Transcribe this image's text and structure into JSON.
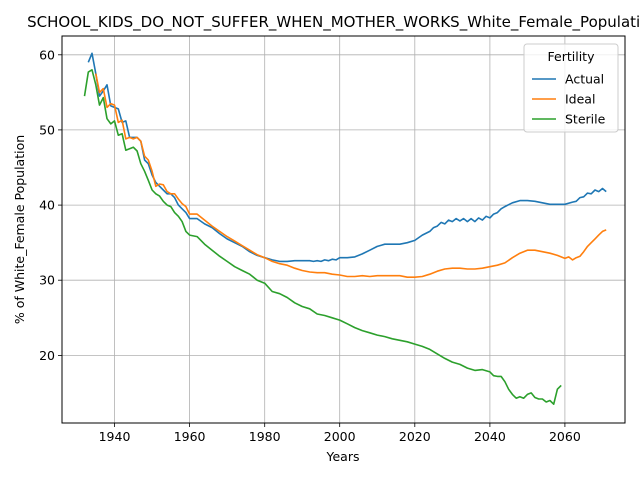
{
  "chart_data": {
    "type": "line",
    "title": "SCHOOL_KIDS_DO_NOT_SUFFER_WHEN_MOTHER_WORKS_White_Female_Population",
    "xlabel": "Years",
    "ylabel": "% of White_Female Population",
    "xlim": [
      1926,
      2076
    ],
    "ylim": [
      11,
      62.5
    ],
    "xticks": [
      1940,
      1960,
      1980,
      2000,
      2020,
      2040,
      2060
    ],
    "yticks": [
      20,
      30,
      40,
      50,
      60
    ],
    "grid": true,
    "legend": {
      "title": "Fertility",
      "position": "top-right",
      "entries": [
        "Actual",
        "Ideal",
        "Sterile"
      ]
    },
    "series": [
      {
        "name": "Actual",
        "color": "#1f77b4",
        "points": [
          [
            1933,
            59
          ],
          [
            1934,
            60.2
          ],
          [
            1935,
            57.5
          ],
          [
            1936,
            54.5
          ],
          [
            1937,
            55.2
          ],
          [
            1938,
            56
          ],
          [
            1939,
            53.2
          ],
          [
            1940,
            53
          ],
          [
            1941,
            52.8
          ],
          [
            1942,
            51
          ],
          [
            1943,
            51.2
          ],
          [
            1944,
            49
          ],
          [
            1945,
            49
          ],
          [
            1946,
            49
          ],
          [
            1947,
            48.5
          ],
          [
            1948,
            46
          ],
          [
            1949,
            45.5
          ],
          [
            1950,
            44
          ],
          [
            1951,
            43
          ],
          [
            1952,
            42.5
          ],
          [
            1953,
            42
          ],
          [
            1954,
            41.5
          ],
          [
            1955,
            41.5
          ],
          [
            1956,
            41
          ],
          [
            1957,
            40
          ],
          [
            1958,
            39.5
          ],
          [
            1959,
            39
          ],
          [
            1960,
            38.2
          ],
          [
            1962,
            38.2
          ],
          [
            1964,
            37.5
          ],
          [
            1966,
            37
          ],
          [
            1968,
            36.2
          ],
          [
            1970,
            35.5
          ],
          [
            1972,
            35
          ],
          [
            1974,
            34.5
          ],
          [
            1976,
            33.8
          ],
          [
            1978,
            33.3
          ],
          [
            1980,
            33
          ],
          [
            1982,
            32.7
          ],
          [
            1984,
            32.5
          ],
          [
            1986,
            32.5
          ],
          [
            1988,
            32.6
          ],
          [
            1990,
            32.6
          ],
          [
            1992,
            32.6
          ],
          [
            1993,
            32.5
          ],
          [
            1994,
            32.6
          ],
          [
            1995,
            32.5
          ],
          [
            1996,
            32.7
          ],
          [
            1997,
            32.6
          ],
          [
            1998,
            32.8
          ],
          [
            1999,
            32.7
          ],
          [
            2000,
            33
          ],
          [
            2002,
            33
          ],
          [
            2004,
            33.1
          ],
          [
            2006,
            33.5
          ],
          [
            2008,
            34
          ],
          [
            2010,
            34.5
          ],
          [
            2012,
            34.8
          ],
          [
            2014,
            34.8
          ],
          [
            2016,
            34.8
          ],
          [
            2018,
            35
          ],
          [
            2020,
            35.3
          ],
          [
            2022,
            36
          ],
          [
            2024,
            36.5
          ],
          [
            2025,
            37
          ],
          [
            2026,
            37.2
          ],
          [
            2027,
            37.7
          ],
          [
            2028,
            37.5
          ],
          [
            2029,
            38
          ],
          [
            2030,
            37.8
          ],
          [
            2031,
            38.2
          ],
          [
            2032,
            37.9
          ],
          [
            2033,
            38.2
          ],
          [
            2034,
            37.8
          ],
          [
            2035,
            38.2
          ],
          [
            2036,
            37.8
          ],
          [
            2037,
            38.3
          ],
          [
            2038,
            38
          ],
          [
            2039,
            38.5
          ],
          [
            2040,
            38.3
          ],
          [
            2041,
            38.8
          ],
          [
            2042,
            39
          ],
          [
            2043,
            39.5
          ],
          [
            2044,
            39.8
          ],
          [
            2046,
            40.3
          ],
          [
            2048,
            40.6
          ],
          [
            2050,
            40.6
          ],
          [
            2052,
            40.5
          ],
          [
            2054,
            40.3
          ],
          [
            2056,
            40.1
          ],
          [
            2058,
            40.1
          ],
          [
            2060,
            40.1
          ],
          [
            2062,
            40.4
          ],
          [
            2063,
            40.5
          ],
          [
            2064,
            41
          ],
          [
            2065,
            41.1
          ],
          [
            2066,
            41.6
          ],
          [
            2067,
            41.5
          ],
          [
            2068,
            42
          ],
          [
            2069,
            41.8
          ],
          [
            2070,
            42.2
          ],
          [
            2071,
            41.8
          ]
        ]
      },
      {
        "name": "Ideal",
        "color": "#ff7f0e",
        "points": [
          [
            1935,
            57.5
          ],
          [
            1936,
            55
          ],
          [
            1937,
            55.5
          ],
          [
            1938,
            53
          ],
          [
            1939,
            53.5
          ],
          [
            1940,
            53.3
          ],
          [
            1941,
            51
          ],
          [
            1942,
            51.3
          ],
          [
            1943,
            48.8
          ],
          [
            1944,
            49
          ],
          [
            1945,
            48.8
          ],
          [
            1946,
            49
          ],
          [
            1947,
            48.5
          ],
          [
            1948,
            46.5
          ],
          [
            1949,
            46
          ],
          [
            1950,
            44.5
          ],
          [
            1951,
            42.5
          ],
          [
            1952,
            42.8
          ],
          [
            1953,
            42.7
          ],
          [
            1954,
            41.8
          ],
          [
            1955,
            41.5
          ],
          [
            1956,
            41.5
          ],
          [
            1957,
            40.8
          ],
          [
            1958,
            40.2
          ],
          [
            1959,
            39.8
          ],
          [
            1960,
            38.8
          ],
          [
            1962,
            38.8
          ],
          [
            1964,
            38
          ],
          [
            1966,
            37.2
          ],
          [
            1968,
            36.5
          ],
          [
            1970,
            35.8
          ],
          [
            1972,
            35.2
          ],
          [
            1974,
            34.6
          ],
          [
            1976,
            34
          ],
          [
            1978,
            33.4
          ],
          [
            1980,
            33
          ],
          [
            1982,
            32.5
          ],
          [
            1984,
            32.2
          ],
          [
            1986,
            32
          ],
          [
            1988,
            31.6
          ],
          [
            1990,
            31.3
          ],
          [
            1992,
            31.1
          ],
          [
            1994,
            31
          ],
          [
            1996,
            31
          ],
          [
            1998,
            30.8
          ],
          [
            2000,
            30.7
          ],
          [
            2002,
            30.5
          ],
          [
            2004,
            30.5
          ],
          [
            2006,
            30.6
          ],
          [
            2008,
            30.5
          ],
          [
            2010,
            30.6
          ],
          [
            2012,
            30.6
          ],
          [
            2014,
            30.6
          ],
          [
            2016,
            30.6
          ],
          [
            2018,
            30.4
          ],
          [
            2020,
            30.4
          ],
          [
            2022,
            30.5
          ],
          [
            2024,
            30.8
          ],
          [
            2026,
            31.2
          ],
          [
            2028,
            31.5
          ],
          [
            2030,
            31.6
          ],
          [
            2032,
            31.6
          ],
          [
            2034,
            31.5
          ],
          [
            2036,
            31.5
          ],
          [
            2038,
            31.6
          ],
          [
            2040,
            31.8
          ],
          [
            2042,
            32
          ],
          [
            2044,
            32.3
          ],
          [
            2046,
            33
          ],
          [
            2048,
            33.6
          ],
          [
            2050,
            34
          ],
          [
            2052,
            34
          ],
          [
            2054,
            33.8
          ],
          [
            2056,
            33.6
          ],
          [
            2058,
            33.3
          ],
          [
            2060,
            32.9
          ],
          [
            2061,
            33.1
          ],
          [
            2062,
            32.7
          ],
          [
            2063,
            33
          ],
          [
            2064,
            33.2
          ],
          [
            2065,
            33.8
          ],
          [
            2066,
            34.5
          ],
          [
            2067,
            35
          ],
          [
            2068,
            35.5
          ],
          [
            2069,
            36
          ],
          [
            2070,
            36.5
          ],
          [
            2071,
            36.7
          ]
        ]
      },
      {
        "name": "Sterile",
        "color": "#2ca02c",
        "points": [
          [
            1932,
            54.5
          ],
          [
            1933,
            57.7
          ],
          [
            1934,
            58
          ],
          [
            1935,
            56
          ],
          [
            1936,
            53.3
          ],
          [
            1937,
            54.3
          ],
          [
            1938,
            51.5
          ],
          [
            1939,
            50.8
          ],
          [
            1940,
            51.2
          ],
          [
            1941,
            49.3
          ],
          [
            1942,
            49.5
          ],
          [
            1943,
            47.3
          ],
          [
            1944,
            47.5
          ],
          [
            1945,
            47.7
          ],
          [
            1946,
            47.2
          ],
          [
            1947,
            45.5
          ],
          [
            1948,
            44.5
          ],
          [
            1949,
            43.3
          ],
          [
            1950,
            42
          ],
          [
            1951,
            41.5
          ],
          [
            1952,
            41.2
          ],
          [
            1953,
            40.5
          ],
          [
            1954,
            40
          ],
          [
            1955,
            39.8
          ],
          [
            1956,
            39
          ],
          [
            1957,
            38.5
          ],
          [
            1958,
            37.8
          ],
          [
            1959,
            36.5
          ],
          [
            1960,
            36
          ],
          [
            1962,
            35.8
          ],
          [
            1964,
            34.8
          ],
          [
            1966,
            34
          ],
          [
            1968,
            33.2
          ],
          [
            1970,
            32.5
          ],
          [
            1972,
            31.8
          ],
          [
            1974,
            31.3
          ],
          [
            1976,
            30.8
          ],
          [
            1978,
            30
          ],
          [
            1980,
            29.6
          ],
          [
            1982,
            28.5
          ],
          [
            1984,
            28.2
          ],
          [
            1986,
            27.7
          ],
          [
            1988,
            27
          ],
          [
            1990,
            26.5
          ],
          [
            1992,
            26.2
          ],
          [
            1994,
            25.5
          ],
          [
            1996,
            25.3
          ],
          [
            1998,
            25
          ],
          [
            2000,
            24.7
          ],
          [
            2002,
            24.2
          ],
          [
            2004,
            23.7
          ],
          [
            2006,
            23.3
          ],
          [
            2008,
            23
          ],
          [
            2010,
            22.7
          ],
          [
            2012,
            22.5
          ],
          [
            2014,
            22.2
          ],
          [
            2016,
            22
          ],
          [
            2018,
            21.8
          ],
          [
            2020,
            21.5
          ],
          [
            2022,
            21.2
          ],
          [
            2024,
            20.8
          ],
          [
            2026,
            20.2
          ],
          [
            2028,
            19.6
          ],
          [
            2030,
            19.1
          ],
          [
            2032,
            18.8
          ],
          [
            2034,
            18.3
          ],
          [
            2036,
            18
          ],
          [
            2038,
            18.1
          ],
          [
            2040,
            17.8
          ],
          [
            2041,
            17.3
          ],
          [
            2042,
            17.2
          ],
          [
            2043,
            17.2
          ],
          [
            2044,
            16.5
          ],
          [
            2045,
            15.5
          ],
          [
            2046,
            14.8
          ],
          [
            2047,
            14.3
          ],
          [
            2048,
            14.5
          ],
          [
            2049,
            14.3
          ],
          [
            2050,
            14.8
          ],
          [
            2051,
            15
          ],
          [
            2052,
            14.4
          ],
          [
            2053,
            14.2
          ],
          [
            2054,
            14.2
          ],
          [
            2055,
            13.8
          ],
          [
            2056,
            14
          ],
          [
            2057,
            13.5
          ],
          [
            2058,
            15.5
          ],
          [
            2059,
            16
          ]
        ]
      }
    ]
  }
}
